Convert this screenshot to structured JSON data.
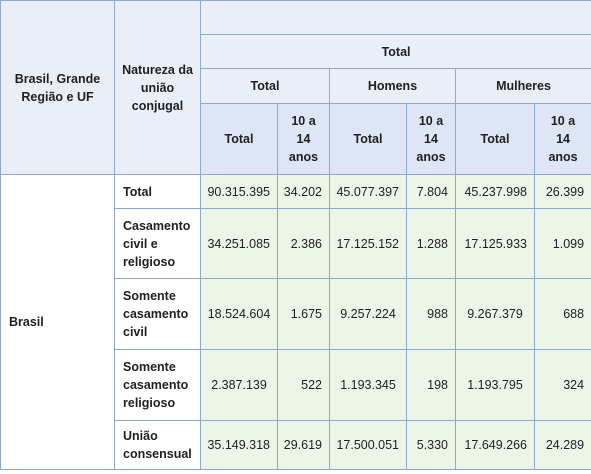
{
  "header": {
    "region_col": "Brasil, Grande Região e UF",
    "nature_col": "Natureza da união conjugal",
    "top_group": "Total",
    "groups": [
      "Total",
      "Homens",
      "Mulheres"
    ],
    "sub_total": "Total",
    "sub_age": "10 a 14 anos"
  },
  "region": "Brasil",
  "rows": [
    {
      "label": "Total",
      "values": [
        "90.315.395",
        "34.202",
        "45.077.397",
        "7.804",
        "45.237.998",
        "26.399"
      ]
    },
    {
      "label": "Casamento civil e religioso",
      "values": [
        "34.251.085",
        "2.386",
        "17.125.152",
        "1.288",
        "17.125.933",
        "1.099"
      ]
    },
    {
      "label": "Somente casamento civil",
      "values": [
        "18.524.604",
        "1.675",
        "9.257.224",
        "988",
        "9.267.379",
        "688"
      ]
    },
    {
      "label": "Somente casamento religioso",
      "values": [
        "2.387.139",
        "522",
        "1.193.345",
        "198",
        "1.193.795",
        "324"
      ]
    },
    {
      "label": "União consensual",
      "values": [
        "35.149.318",
        "29.619",
        "17.500.051",
        "5.330",
        "17.649.266",
        "24.289"
      ]
    }
  ]
}
